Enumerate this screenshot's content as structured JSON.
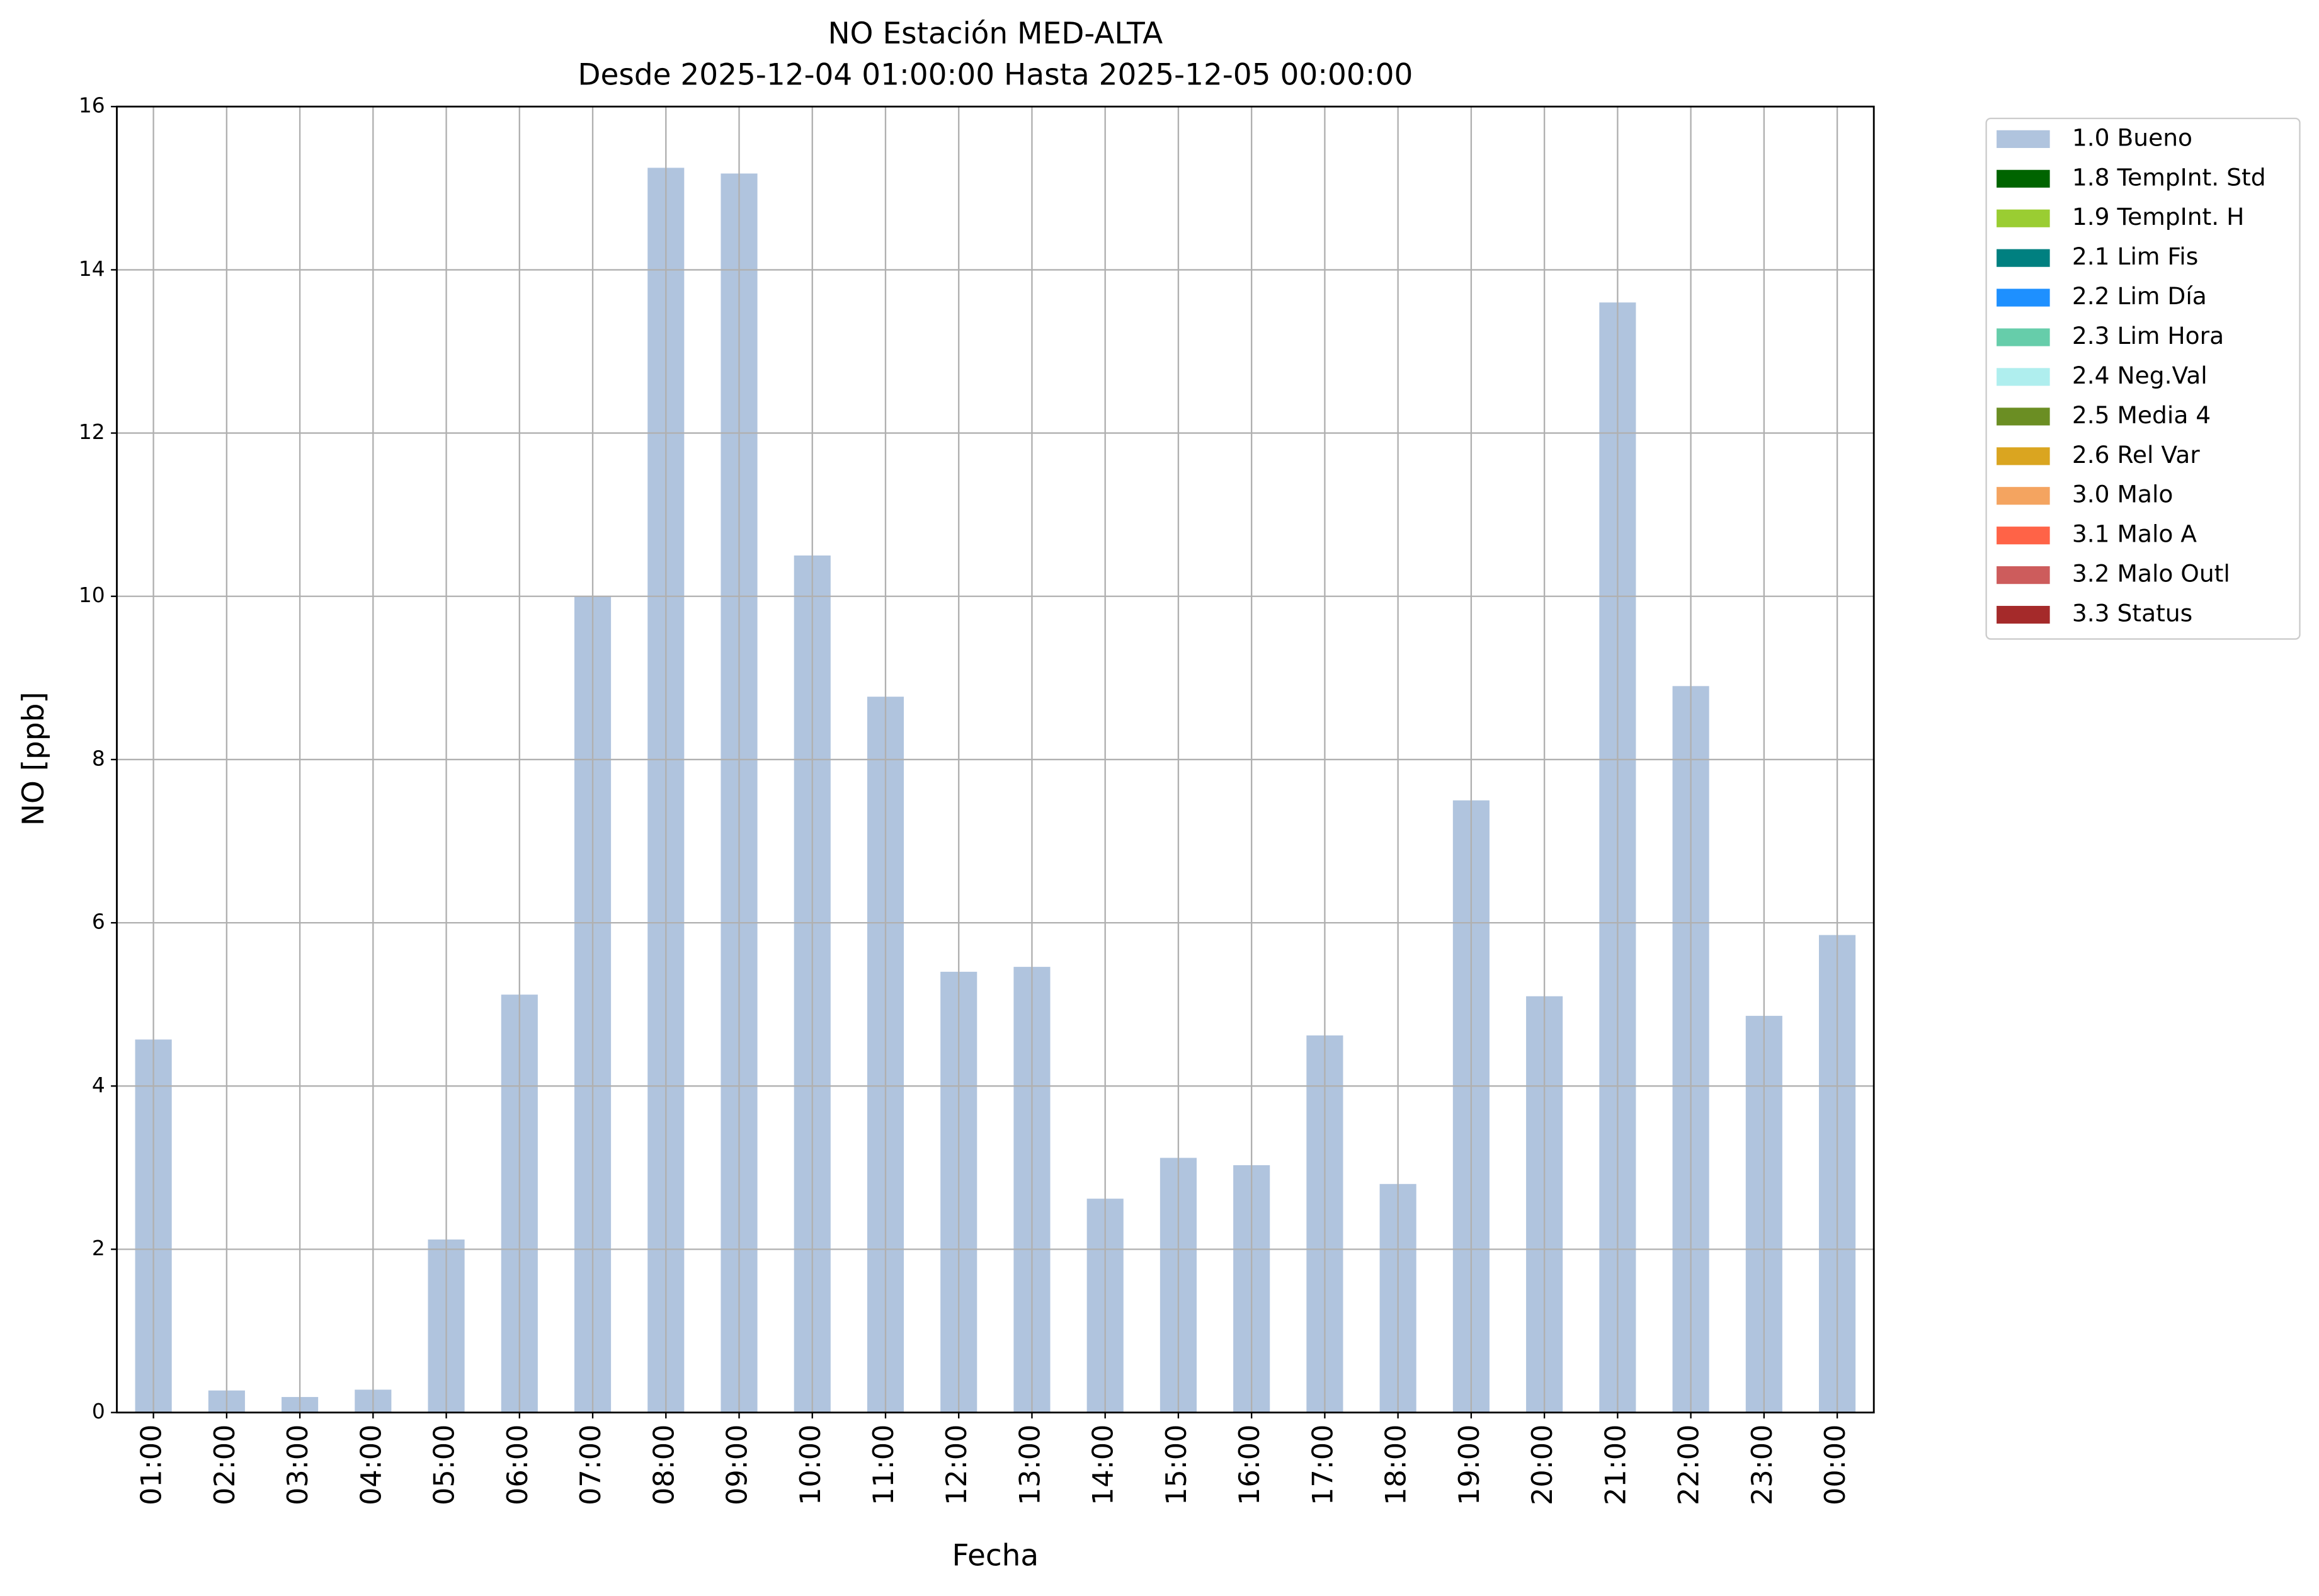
{
  "chart_data": {
    "type": "stacked_bar",
    "title": "NO Estación MED-ALTA",
    "subtitle": "Desde 2025-12-04 01:00:00 Hasta 2025-12-05 00:00:00",
    "x_label": "Fecha",
    "y_label": "NO [ppb]",
    "categories": [
      "01:00",
      "02:00",
      "03:00",
      "04:00",
      "05:00",
      "06:00",
      "07:00",
      "08:00",
      "09:00",
      "10:00",
      "11:00",
      "12:00",
      "13:00",
      "14:00",
      "15:00",
      "16:00",
      "17:00",
      "18:00",
      "19:00",
      "20:00",
      "21:00",
      "22:00",
      "23:00",
      "00:00"
    ],
    "series": [
      {
        "name": "1.0 Bueno",
        "color": "#b0c4de",
        "values": [
          4.57,
          0.27,
          0.19,
          0.28,
          2.12,
          5.12,
          10.0,
          15.25,
          15.18,
          10.5,
          8.77,
          5.4,
          5.46,
          2.62,
          3.12,
          3.03,
          4.62,
          2.8,
          7.5,
          5.1,
          13.6,
          8.9,
          4.86,
          5.85
        ]
      },
      {
        "name": "1.8 TempInt. Std",
        "color": "#006400",
        "values": [
          0,
          0,
          0,
          0,
          0,
          0,
          0,
          0,
          0,
          0,
          0,
          0,
          0,
          0,
          0,
          0,
          0,
          0,
          0,
          0,
          0,
          0,
          0,
          0
        ]
      },
      {
        "name": "1.9 TempInt. H",
        "color": "#9acd32",
        "values": [
          0,
          0,
          0,
          0,
          0,
          0,
          0,
          0,
          0,
          0,
          0,
          0,
          0,
          0,
          0,
          0,
          0,
          0,
          0,
          0,
          0,
          0,
          0,
          0
        ]
      },
      {
        "name": "2.1 Lim Fis",
        "color": "#008080",
        "values": [
          0,
          0,
          0,
          0,
          0,
          0,
          0,
          0,
          0,
          0,
          0,
          0,
          0,
          0,
          0,
          0,
          0,
          0,
          0,
          0,
          0,
          0,
          0,
          0
        ]
      },
      {
        "name": "2.2 Lim Día",
        "color": "#1e90ff",
        "values": [
          0,
          0,
          0,
          0,
          0,
          0,
          0,
          0,
          0,
          0,
          0,
          0,
          0,
          0,
          0,
          0,
          0,
          0,
          0,
          0,
          0,
          0,
          0,
          0
        ]
      },
      {
        "name": "2.3 Lim Hora",
        "color": "#66cdaa",
        "values": [
          0,
          0,
          0,
          0,
          0,
          0,
          0,
          0,
          0,
          0,
          0,
          0,
          0,
          0,
          0,
          0,
          0,
          0,
          0,
          0,
          0,
          0,
          0,
          0
        ]
      },
      {
        "name": "2.4 Neg.Val",
        "color": "#afeeee",
        "values": [
          0,
          0,
          0,
          0,
          0,
          0,
          0,
          0,
          0,
          0,
          0,
          0,
          0,
          0,
          0,
          0,
          0,
          0,
          0,
          0,
          0,
          0,
          0,
          0
        ]
      },
      {
        "name": "2.5 Media 4",
        "color": "#6b8e23",
        "values": [
          0,
          0,
          0,
          0,
          0,
          0,
          0,
          0,
          0,
          0,
          0,
          0,
          0,
          0,
          0,
          0,
          0,
          0,
          0,
          0,
          0,
          0,
          0,
          0
        ]
      },
      {
        "name": "2.6 Rel Var",
        "color": "#daa520",
        "values": [
          0,
          0,
          0,
          0,
          0,
          0,
          0,
          0,
          0,
          0,
          0,
          0,
          0,
          0,
          0,
          0,
          0,
          0,
          0,
          0,
          0,
          0,
          0,
          0
        ]
      },
      {
        "name": "3.0 Malo",
        "color": "#f4a460",
        "values": [
          0,
          0,
          0,
          0,
          0,
          0,
          0,
          0,
          0,
          0,
          0,
          0,
          0,
          0,
          0,
          0,
          0,
          0,
          0,
          0,
          0,
          0,
          0,
          0
        ]
      },
      {
        "name": "3.1 Malo A",
        "color": "#ff6347",
        "values": [
          0,
          0,
          0,
          0,
          0,
          0,
          0,
          0,
          0,
          0,
          0,
          0,
          0,
          0,
          0,
          0,
          0,
          0,
          0,
          0,
          0,
          0,
          0,
          0
        ]
      },
      {
        "name": "3.2 Malo Outl",
        "color": "#cd5c5c",
        "values": [
          0,
          0,
          0,
          0,
          0,
          0,
          0,
          0,
          0,
          0,
          0,
          0,
          0,
          0,
          0,
          0,
          0,
          0,
          0,
          0,
          0,
          0,
          0,
          0
        ]
      },
      {
        "name": "3.3 Status",
        "color": "#a52a2a",
        "values": [
          0,
          0,
          0,
          0,
          0,
          0,
          0,
          0,
          0,
          0,
          0,
          0,
          0,
          0,
          0,
          0,
          0,
          0,
          0,
          0,
          0,
          0,
          0,
          0
        ]
      }
    ],
    "ylim": [
      0,
      16
    ],
    "yticks": [
      0,
      2,
      4,
      6,
      8,
      10,
      12,
      14,
      16
    ],
    "grid": true,
    "legend": "outside-right"
  }
}
